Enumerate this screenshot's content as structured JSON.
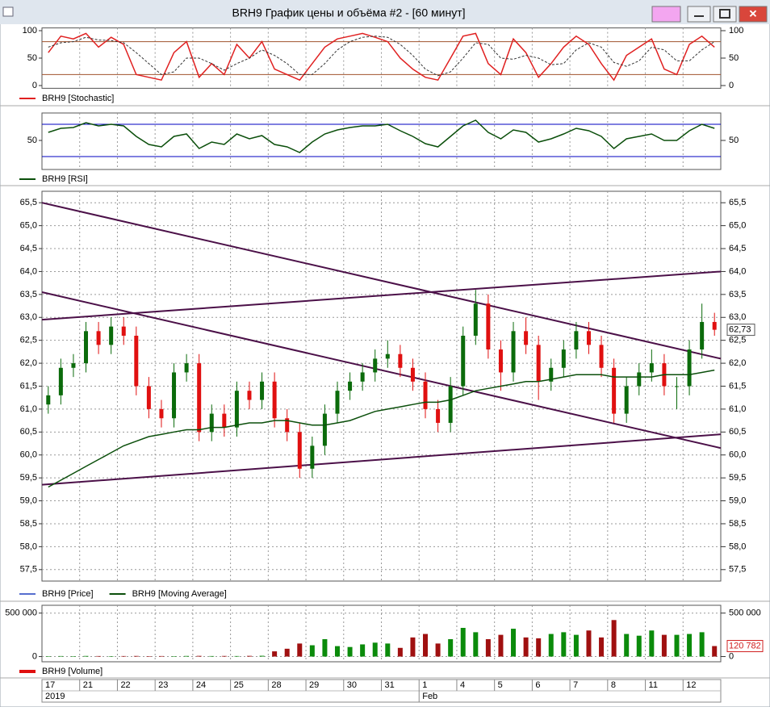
{
  "window": {
    "title": "BRH9 График цены и объёма #2 - [60 минут]"
  },
  "x_axis": {
    "categories": [
      "17",
      null,
      null,
      "21",
      null,
      null,
      "22",
      null,
      null,
      "23",
      null,
      null,
      "24",
      null,
      null,
      "25",
      null,
      null,
      "28",
      null,
      null,
      "29",
      null,
      null,
      "30",
      null,
      null,
      "31",
      null,
      null,
      "1",
      null,
      null,
      "4",
      null,
      null,
      "5",
      null,
      null,
      "6",
      null,
      null,
      "7",
      null,
      null,
      "8",
      null,
      null,
      "11",
      null,
      null,
      "12",
      null,
      null
    ],
    "periods": [
      "2019",
      null,
      null,
      null,
      null,
      null,
      null,
      null,
      null,
      null,
      null,
      null,
      null,
      null,
      null,
      null,
      null,
      null,
      null,
      null,
      null,
      null,
      null,
      null,
      null,
      null,
      null,
      null,
      null,
      null,
      "Feb",
      null,
      null,
      null,
      null,
      null,
      null,
      null,
      null,
      null,
      null,
      null,
      null,
      null,
      null,
      null,
      null,
      null,
      null,
      null,
      null,
      null,
      null,
      null
    ]
  },
  "chart_data": [
    {
      "type": "line",
      "ylim": [
        -5,
        105
      ],
      "yticks": [
        0,
        50,
        100
      ],
      "grid": false,
      "levels": [
        20,
        80
      ],
      "level_color": "#a0522d",
      "series": [
        {
          "name": "BRH9 [Stochastic]",
          "color": "#e02020",
          "values": [
            60,
            90,
            85,
            95,
            70,
            88,
            75,
            20,
            15,
            10,
            60,
            80,
            15,
            40,
            20,
            75,
            50,
            80,
            30,
            20,
            10,
            40,
            70,
            85,
            90,
            95,
            88,
            80,
            50,
            30,
            15,
            10,
            50,
            90,
            95,
            40,
            20,
            85,
            60,
            15,
            40,
            70,
            90,
            75,
            40,
            10,
            55,
            70,
            85,
            30,
            20,
            75,
            90,
            70
          ]
        },
        {
          "color": "#333333",
          "dash": true,
          "values": [
            70,
            78,
            80,
            88,
            83,
            82,
            78,
            60,
            40,
            20,
            25,
            50,
            50,
            40,
            28,
            40,
            50,
            65,
            55,
            40,
            20,
            20,
            40,
            65,
            80,
            88,
            90,
            88,
            75,
            55,
            30,
            18,
            25,
            50,
            78,
            75,
            50,
            48,
            55,
            50,
            38,
            40,
            65,
            78,
            70,
            42,
            35,
            45,
            70,
            65,
            45,
            45,
            65,
            80
          ]
        }
      ]
    },
    {
      "type": "line",
      "ylim": [
        14,
        84
      ],
      "yticks": [
        50
      ],
      "grid": false,
      "levels": [
        30,
        70
      ],
      "level_color": "#0000c0",
      "series": [
        {
          "name": "BRH9 [RSI]",
          "color": "#0b4f0b",
          "values": [
            60,
            65,
            66,
            72,
            68,
            70,
            68,
            55,
            45,
            42,
            55,
            58,
            40,
            48,
            45,
            58,
            52,
            56,
            45,
            42,
            35,
            48,
            58,
            63,
            66,
            68,
            68,
            70,
            62,
            55,
            46,
            42,
            55,
            68,
            75,
            60,
            52,
            63,
            60,
            48,
            52,
            58,
            65,
            62,
            55,
            40,
            52,
            55,
            58,
            50,
            50,
            62,
            70,
            65
          ]
        }
      ]
    },
    {
      "type": "candlestick",
      "name": "BRH9 [Price]",
      "legend_color": "#1f3fbf",
      "up_color": "#0b6b0b",
      "down_color": "#e01010",
      "grid": true,
      "ylim": [
        57.25,
        65.75
      ],
      "yticks": [
        {
          "value": 57.5,
          "label": "57,5"
        },
        {
          "value": 58,
          "label": "58,0"
        },
        {
          "value": 58.5,
          "label": "58,5"
        },
        {
          "value": 59,
          "label": "59,0"
        },
        {
          "value": 59.5,
          "label": "59,5"
        },
        {
          "value": 60,
          "label": "60,0"
        },
        {
          "value": 60.5,
          "label": "60,5"
        },
        {
          "value": 61,
          "label": "61,0"
        },
        {
          "value": 61.5,
          "label": "61,5"
        },
        {
          "value": 62,
          "label": "62,0"
        },
        {
          "value": 62.5,
          "label": "62,5"
        },
        {
          "value": 63,
          "label": "63,0"
        },
        {
          "value": 63.5,
          "label": "63,5"
        },
        {
          "value": 64,
          "label": "64,0"
        },
        {
          "value": 64.5,
          "label": "64,5"
        },
        {
          "value": 65,
          "label": "65,0"
        },
        {
          "value": 65.5,
          "label": "65,5"
        }
      ],
      "open": [
        61.1,
        61.3,
        61.9,
        62.0,
        62.7,
        62.4,
        62.8,
        62.6,
        61.5,
        61.0,
        60.8,
        61.8,
        62.0,
        60.5,
        60.9,
        60.6,
        61.4,
        61.2,
        61.6,
        60.8,
        60.5,
        59.7,
        60.2,
        60.9,
        61.4,
        61.6,
        61.8,
        62.1,
        62.2,
        61.9,
        61.6,
        61.0,
        60.7,
        61.5,
        62.6,
        63.3,
        62.3,
        61.8,
        62.7,
        62.4,
        61.6,
        61.9,
        62.3,
        62.7,
        62.4,
        61.9,
        60.9,
        61.5,
        61.8,
        62.0,
        61.5,
        61.5,
        62.3,
        62.9
      ],
      "high": [
        61.5,
        62.1,
        62.2,
        62.9,
        62.9,
        63.0,
        63.0,
        62.8,
        61.7,
        61.2,
        62.0,
        62.2,
        62.2,
        61.1,
        61.1,
        61.6,
        61.6,
        61.8,
        61.8,
        61.0,
        60.7,
        60.4,
        61.1,
        61.6,
        61.8,
        62.0,
        62.3,
        62.5,
        62.4,
        62.1,
        61.8,
        61.2,
        61.7,
        62.8,
        63.6,
        63.5,
        62.5,
        62.9,
        63.0,
        62.6,
        62.1,
        62.5,
        62.9,
        62.9,
        62.6,
        62.1,
        61.7,
        62.0,
        62.3,
        62.2,
        61.7,
        62.5,
        63.3,
        63.1
      ],
      "low": [
        60.9,
        61.1,
        61.7,
        61.8,
        62.2,
        62.2,
        62.4,
        61.3,
        60.8,
        60.6,
        60.6,
        61.6,
        60.3,
        60.3,
        60.4,
        60.4,
        61.0,
        61.0,
        60.6,
        60.3,
        59.5,
        59.5,
        60.0,
        60.7,
        61.2,
        61.4,
        61.6,
        61.9,
        61.7,
        61.4,
        60.8,
        60.5,
        60.5,
        61.3,
        62.4,
        62.1,
        61.4,
        61.6,
        62.2,
        61.2,
        61.4,
        61.7,
        62.1,
        62.2,
        61.7,
        60.7,
        60.7,
        61.3,
        61.6,
        61.3,
        61.0,
        61.3,
        62.1,
        62.6
      ],
      "close": [
        61.3,
        61.9,
        62.0,
        62.7,
        62.4,
        62.8,
        62.6,
        61.5,
        61.0,
        60.8,
        61.8,
        62.0,
        60.5,
        60.9,
        60.6,
        61.4,
        61.2,
        61.6,
        60.8,
        60.5,
        59.7,
        60.2,
        60.9,
        61.4,
        61.6,
        61.8,
        62.1,
        62.2,
        61.9,
        61.6,
        61.0,
        60.7,
        61.5,
        62.6,
        63.3,
        62.3,
        61.8,
        62.7,
        62.4,
        61.6,
        61.9,
        62.3,
        62.7,
        62.4,
        61.9,
        60.9,
        61.5,
        61.8,
        62.0,
        61.5,
        61.5,
        62.3,
        62.9,
        62.73
      ],
      "last_value_label": "62,73",
      "series": [
        {
          "name": "BRH9 [Moving Average]",
          "color": "#0b4f0b",
          "values": [
            59.3,
            59.45,
            59.6,
            59.75,
            59.9,
            60.05,
            60.2,
            60.3,
            60.4,
            60.45,
            60.5,
            60.55,
            60.55,
            60.6,
            60.6,
            60.65,
            60.7,
            60.7,
            60.75,
            60.75,
            60.7,
            60.65,
            60.65,
            60.7,
            60.75,
            60.85,
            60.95,
            61.0,
            61.05,
            61.1,
            61.15,
            61.15,
            61.2,
            61.3,
            61.4,
            61.45,
            61.5,
            61.55,
            61.6,
            61.6,
            61.65,
            61.7,
            61.75,
            61.75,
            61.75,
            61.7,
            61.7,
            61.7,
            61.7,
            61.75,
            61.75,
            61.75,
            61.8,
            61.85
          ]
        }
      ],
      "trendline_color": "#4b1048",
      "trendlines": [
        {
          "start": 65.5,
          "end": 62.1
        },
        {
          "start": 63.55,
          "end": 60.15
        },
        {
          "start": 62.95,
          "end": 64.0
        },
        {
          "start": 59.35,
          "end": 60.45
        }
      ]
    },
    {
      "type": "bar",
      "name": "BRH9 [Volume]",
      "color": "#e01010",
      "up_color": "#0b8b0b",
      "down_color": "#a01010",
      "grid": true,
      "ylim": [
        -60000,
        590000
      ],
      "yticks": [
        0,
        {
          "value": 500000,
          "label": "500 000"
        }
      ],
      "values": [
        5000,
        6000,
        5000,
        7000,
        6000,
        5000,
        6000,
        7000,
        5000,
        6000,
        5000,
        7000,
        8000,
        6000,
        7000,
        6000,
        8000,
        9000,
        60000,
        90000,
        150000,
        130000,
        200000,
        120000,
        110000,
        140000,
        160000,
        150000,
        100000,
        220000,
        260000,
        150000,
        200000,
        330000,
        280000,
        200000,
        250000,
        320000,
        220000,
        210000,
        260000,
        280000,
        250000,
        300000,
        220000,
        420000,
        260000,
        240000,
        300000,
        250000,
        250000,
        260000,
        280000,
        120782
      ],
      "last_value_label": "120 782"
    }
  ]
}
